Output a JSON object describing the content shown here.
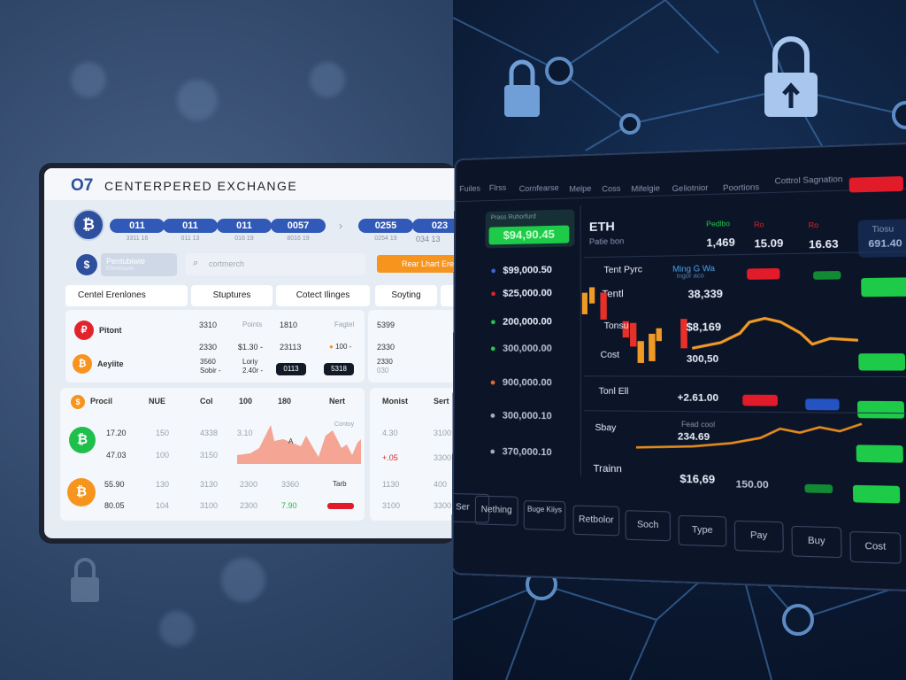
{
  "colors": {
    "accent_blue": "#3159b8",
    "orange": "#f7941d",
    "green": "#1ecb48",
    "red": "#e21b2b",
    "dark_bg": "#0c1428"
  },
  "left": {
    "logo": "O7",
    "title": "CENTERPERED EXCHANGE",
    "tickers": [
      {
        "v": "011",
        "s": "3311 16"
      },
      {
        "v": "011",
        "s": "011 13"
      },
      {
        "v": "011",
        "s": "016 19"
      },
      {
        "v": "0057",
        "s": "8016 19"
      },
      {
        "v": "0255",
        "s": "0254 19"
      },
      {
        "v": "023",
        "s": "034 13"
      }
    ],
    "account": {
      "name": "Pentubiwie",
      "sub": "Effwbtfaprie"
    },
    "search_placeholder": "cortmerch",
    "action_button": "Rear Lhart Ere",
    "tabs": [
      "Centel Erenlones",
      "Stuptures",
      "Cotect Ilinges",
      "Soyting"
    ],
    "rows": [
      {
        "name": "Pitont",
        "a": "3310",
        "b": "Points",
        "c": "1810",
        "d": "Fagtel",
        "e": "5399"
      },
      {
        "a": "2330",
        "b": "$1.30 -",
        "c": "23113",
        "d": "100 -",
        "e": "2330"
      },
      {
        "name": "Aeyiite",
        "a": "3560",
        "a2": "Sobir -",
        "b": "Loriy",
        "b2": "2.40r -",
        "c": "0113",
        "d": "5318",
        "e": "2330",
        "e2": "030"
      }
    ],
    "table_headers": [
      "Procil",
      "NUE",
      "Col",
      "100",
      "180",
      "Nert"
    ],
    "table_rows": [
      [
        "17.20",
        "150",
        "4338",
        "3.10"
      ],
      [
        "47.03",
        "100",
        "3150"
      ],
      [
        "55.90",
        "130",
        "3130",
        "2300",
        "3360",
        "Tarb"
      ],
      [
        "80.05",
        "104",
        "3100",
        "2300",
        "7.90"
      ]
    ],
    "chart_label": "Contoy",
    "chart_mark": "A",
    "side_headers": [
      "Monist",
      "Sert"
    ],
    "side_rows": [
      [
        "4.30",
        "3100"
      ],
      [
        "+.05",
        "3300"
      ],
      [
        "1130",
        "400"
      ],
      [
        "3100",
        "3300"
      ]
    ]
  },
  "right": {
    "nav": [
      "Fuiles",
      "Flrss",
      "Cornfearse",
      "Melpe",
      "Coss",
      "Mifelgie",
      "Geliotnior",
      "Poortions",
      "Cottrol Sagnation"
    ],
    "balance_label": "Prass Ruhorfurd",
    "balance": "$94,90.45",
    "asset": "ETH",
    "asset_sub": "Patie bon",
    "stats": [
      {
        "l": "Pedlbo",
        "v": "1,469"
      },
      {
        "l": "Ro",
        "v": "15.09"
      },
      {
        "l": "Ro",
        "v": "16.63"
      }
    ],
    "stat_box": {
      "l": "Tiosu",
      "v": "691.40"
    },
    "orderbook": [
      "$99,000.50",
      "$25,000.00",
      "200,000.00",
      "300,000.00",
      "900,000.00",
      "300,000.10",
      "370,000.10"
    ],
    "rows": [
      {
        "label": "Tent Pyrc",
        "sub": "Ming G Wa",
        "sub2": "Ingor aco"
      },
      {
        "label": "Tentl",
        "v": "38,339"
      },
      {
        "label": "Tonsu",
        "v": "$8,169"
      },
      {
        "label": "Cost",
        "v": "300,50"
      },
      {
        "label": "Tonl Ell",
        "v": "+2.61.00"
      },
      {
        "label": "Sbay",
        "v": "234.69",
        "sub": "Fead cool"
      },
      {
        "label": "Trainn",
        "v": "$16,69",
        "v2": "150.00"
      }
    ],
    "bottom_buttons": [
      "Ser",
      "Nething",
      "Buge Kiiys",
      "Retbolor",
      "Soch",
      "Type",
      "Pay",
      "Buy",
      "Cost"
    ]
  }
}
